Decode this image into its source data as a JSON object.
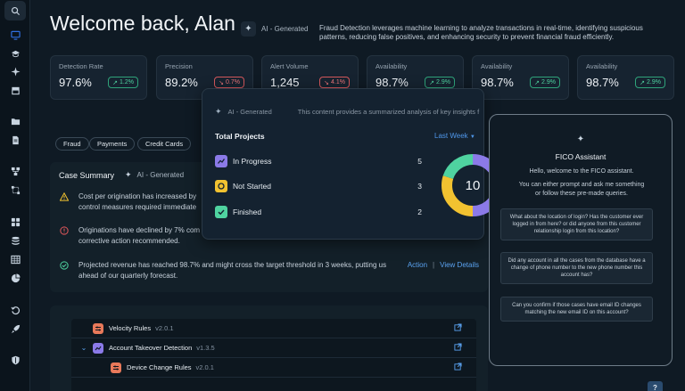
{
  "sidebar": {
    "items": [
      {
        "name": "search-icon"
      },
      {
        "name": "monitor-icon",
        "active": true
      },
      {
        "name": "graduation-cap-icon"
      },
      {
        "name": "sparkle-icon"
      },
      {
        "name": "storefront-icon"
      },
      {
        "name": "folder-icon"
      },
      {
        "name": "document-icon"
      },
      {
        "name": "workflow-icon"
      },
      {
        "name": "branch-icon"
      },
      {
        "name": "grid-icon"
      },
      {
        "name": "database-icon"
      },
      {
        "name": "table-icon"
      },
      {
        "name": "pie-chart-icon"
      },
      {
        "name": "history-icon"
      },
      {
        "name": "rocket-icon"
      },
      {
        "name": "shield-icon"
      }
    ]
  },
  "header": {
    "title": "Welcome back, Alan",
    "ai_label": "AI - Generated",
    "description": "Fraud Detection leverages machine learning to analyze transactions in real-time, identifying suspicious patterns, reducing false positives, and enhancing security to prevent financial fraud efficiently."
  },
  "kpis": [
    {
      "label": "Detection Rate",
      "value": "97.6%",
      "change": "1.2%",
      "trend": "up"
    },
    {
      "label": "Precision",
      "value": "89.2%",
      "change": "0.7%",
      "trend": "down"
    },
    {
      "label": "Alert Volume",
      "value": "1,245",
      "change": "4.1%",
      "trend": "down"
    },
    {
      "label": "Availability",
      "value": "98.7%",
      "change": "2.9%",
      "trend": "up"
    },
    {
      "label": "Availability",
      "value": "98.7%",
      "change": "2.9%",
      "trend": "up"
    },
    {
      "label": "Availability",
      "value": "98.7%",
      "change": "2.9%",
      "trend": "up"
    }
  ],
  "filters": [
    "Fraud",
    "Payments",
    "Credit Cards"
  ],
  "case_summary": {
    "title": "Case Summary",
    "ai_label": "AI - Generated",
    "items": [
      {
        "icon": "warning-icon",
        "line1": "Cost per origination has increased by",
        "line2": "control measures required immediate"
      },
      {
        "icon": "alert-circle-icon",
        "line1": "Originations have declined by 7% com",
        "line2": "corrective action recommended."
      },
      {
        "icon": "check-circle-icon",
        "line1": "Projected revenue has reached 98.7% and might cross the target threshold in 3 weeks, putting us",
        "line2": "ahead of our quarterly forecast."
      }
    ],
    "action_label": "Action",
    "separator": "|",
    "view_details_label": "View Details"
  },
  "rules": [
    {
      "name": "Velocity Rules",
      "version": "v2.0.1",
      "expanded": false,
      "color": "#e8795a"
    },
    {
      "name": "Account Takeover Detection",
      "version": "v1.3.5",
      "expanded": true,
      "color": "#8b7ae8"
    },
    {
      "name": "Device Change Rules",
      "version": "v2.0.1",
      "expanded": false,
      "color": "#e8795a"
    }
  ],
  "projects_popup": {
    "ai_label": "AI - Generated",
    "ai_note": "This  content provides a summarized analysis of key insights f",
    "title": "Total Projects",
    "period": "Last Week",
    "rows": [
      {
        "label": "In Progress",
        "count": "5",
        "color": "#8b7ae8"
      },
      {
        "label": "Not Started",
        "count": "3",
        "color": "#f2c230"
      },
      {
        "label": "Finished",
        "count": "2",
        "color": "#4fd3a0"
      }
    ],
    "total": "10",
    "chart_data": {
      "type": "pie",
      "categories": [
        "In Progress",
        "Not Started",
        "Finished"
      ],
      "values": [
        5,
        3,
        2
      ],
      "colors": [
        "#8b7ae8",
        "#f2c230",
        "#4fd3a0"
      ]
    }
  },
  "assistant": {
    "title": "FICO Assistant",
    "greeting": "Hello, welcome to the FICO assistant.",
    "prompt_line1": "You can either prompt and ask me something",
    "prompt_line2": "or follow these pre-made queries.",
    "queries": [
      {
        "l1": "What about the location of login? Has the customer ever",
        "l2": "logged in from here? or did anyone from this customer",
        "l3": "relationship login from this location?"
      },
      {
        "l1": "Did any account in all the cases from the database have a",
        "l2": "change of phone number to the new phone number this",
        "l3": "account has?"
      },
      {
        "l1": "Can you confirm if those cases have email ID changes",
        "l2": "matching the new email ID on this account?",
        "l3": ""
      }
    ]
  },
  "help": {
    "label": "?"
  }
}
